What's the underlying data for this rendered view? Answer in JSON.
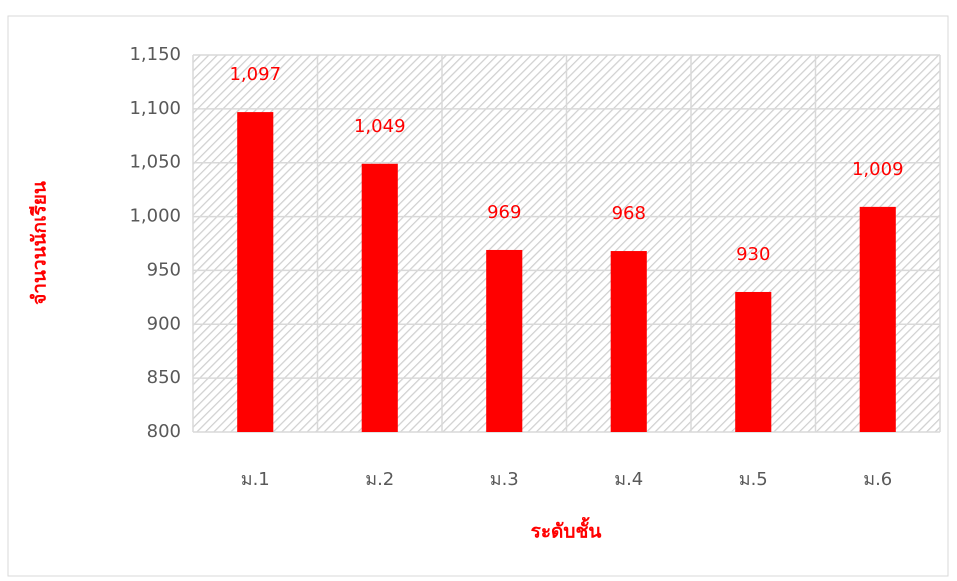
{
  "chart_data": {
    "type": "bar",
    "x_label": "ระดับชั้น",
    "y_label": "จำนวนนักเรียน",
    "categories": [
      "ม.1",
      "ม.2",
      "ม.3",
      "ม.4",
      "ม.5",
      "ม.6"
    ],
    "values": [
      1097,
      1049,
      969,
      968,
      930,
      1009
    ],
    "value_labels": [
      "1,097",
      "1,049",
      "969",
      "968",
      "930",
      "1,009"
    ],
    "color": "#ff0000",
    "ylim": [
      800,
      1150
    ],
    "yticks": [
      800,
      850,
      900,
      950,
      {
        "value": 1000,
        "label": "1,000"
      },
      {
        "value": 1050,
        "label": "1,050"
      },
      {
        "value": 1100,
        "label": "1,100"
      },
      {
        "value": 1150,
        "label": "1,150"
      }
    ],
    "grid": true
  }
}
